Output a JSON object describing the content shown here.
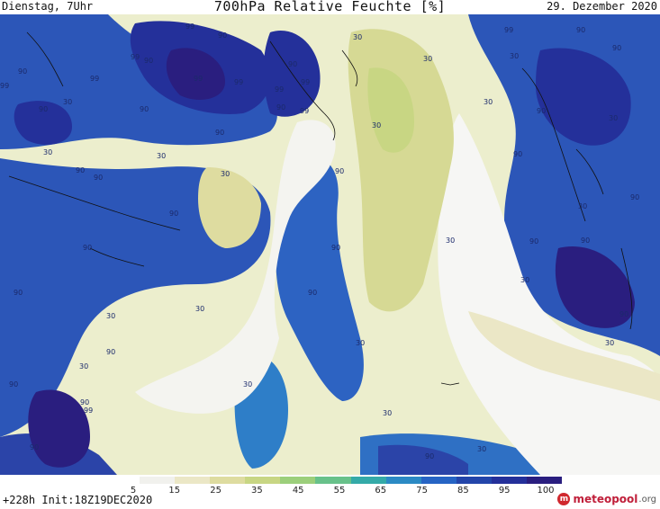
{
  "header": {
    "left": "Dienstag, 7Uhr",
    "title": "700hPa Relative Feuchte [%]",
    "right": "29. Dezember 2020"
  },
  "legend": {
    "ticks": [
      "5",
      "15",
      "25",
      "35",
      "45",
      "55",
      "65",
      "75",
      "85",
      "95",
      "100"
    ],
    "colors": [
      "#ffffff",
      "#f1f1ed",
      "#ebe7c6",
      "#dedca0",
      "#c8d683",
      "#9ccf7b",
      "#68c18a",
      "#34aaa8",
      "#2b8ac4",
      "#2664c4",
      "#2345aa",
      "#24309a",
      "#2a1e7f"
    ]
  },
  "footer": {
    "init": "+228h  Init:18Z19DEC2020"
  },
  "logo": {
    "name": "meteopool",
    "tld": ".org"
  },
  "contour_labels": {
    "a": "99",
    "b": "90",
    "c": "99",
    "d": "90",
    "e": "99",
    "f": "99",
    "g": "99",
    "h": "90",
    "i": "99",
    "j": "90",
    "k": "99",
    "l": "99",
    "m": "90",
    "n": "90",
    "o": "99",
    "p": "30",
    "q": "30",
    "r": "30",
    "s": "30",
    "t": "30",
    "u": "90",
    "v": "90",
    "w": "90",
    "x": "90",
    "y": "90",
    "z": "30",
    "aa": "30",
    "ab": "30",
    "ac": "90",
    "ad": "90",
    "ae": "90",
    "af": "30",
    "ag": "30",
    "ah": "30",
    "ai": "90",
    "aj": "90",
    "ak": "90",
    "al": "90",
    "am": "30",
    "an": "90",
    "ao": "90",
    "ap": "30",
    "aq": "30",
    "ar": "90",
    "as": "90",
    "at": "99",
    "au": "99",
    "av": "90",
    "aw": "30",
    "ax": "90",
    "ay": "30",
    "az": "90",
    "ba": "30",
    "bb": "90",
    "bc": "90",
    "bd": "30",
    "be": "90",
    "bf": "30",
    "bg": "90",
    "bh": "30",
    "bi": "30"
  }
}
